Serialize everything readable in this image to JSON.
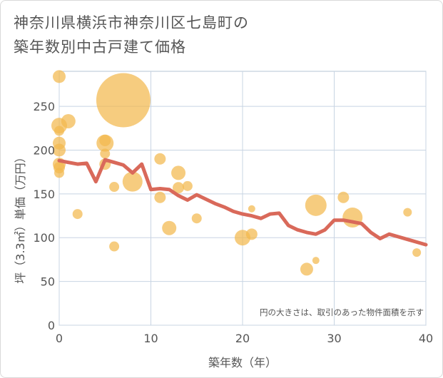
{
  "chart_data": {
    "type": "scatter",
    "title_line1": "神奈川県横浜市神奈川区七島町の",
    "title_line2": "築年数別中古戸建て価格",
    "xlabel": "築年数（年）",
    "ylabel": "坪（3.3㎡）単価（万円）",
    "xlim": [
      0,
      40
    ],
    "ylim": [
      0,
      290
    ],
    "xticks": [
      0,
      10,
      20,
      30,
      40
    ],
    "yticks": [
      0,
      50,
      100,
      150,
      200,
      250
    ],
    "grid": true,
    "bubble_note": "円の大きさは、取引のあった物件面積を示す",
    "colors": {
      "bubble": "#f3b84e",
      "line": "#d9695a",
      "grid": "#c8d4e3",
      "plot_border": "#b6c4d6"
    },
    "bubbles": [
      {
        "x": 0,
        "y": 284,
        "s": 9
      },
      {
        "x": 0,
        "y": 228,
        "s": 11
      },
      {
        "x": 0,
        "y": 222,
        "s": 7
      },
      {
        "x": 0,
        "y": 208,
        "s": 9
      },
      {
        "x": 0,
        "y": 200,
        "s": 9
      },
      {
        "x": 0,
        "y": 184,
        "s": 9
      },
      {
        "x": 0,
        "y": 180,
        "s": 8
      },
      {
        "x": 0,
        "y": 174,
        "s": 7
      },
      {
        "x": 1,
        "y": 233,
        "s": 10
      },
      {
        "x": 2,
        "y": 127,
        "s": 7
      },
      {
        "x": 5,
        "y": 208,
        "s": 12
      },
      {
        "x": 5,
        "y": 211,
        "s": 8
      },
      {
        "x": 5,
        "y": 196,
        "s": 7
      },
      {
        "x": 5,
        "y": 184,
        "s": 8
      },
      {
        "x": 6,
        "y": 158,
        "s": 7
      },
      {
        "x": 6,
        "y": 90,
        "s": 7
      },
      {
        "x": 7,
        "y": 257,
        "s": 38
      },
      {
        "x": 8,
        "y": 164,
        "s": 14
      },
      {
        "x": 11,
        "y": 190,
        "s": 8
      },
      {
        "x": 11,
        "y": 146,
        "s": 8
      },
      {
        "x": 12,
        "y": 111,
        "s": 10
      },
      {
        "x": 13,
        "y": 174,
        "s": 10
      },
      {
        "x": 13,
        "y": 157,
        "s": 8
      },
      {
        "x": 14,
        "y": 159,
        "s": 7
      },
      {
        "x": 15,
        "y": 122,
        "s": 7
      },
      {
        "x": 20,
        "y": 100,
        "s": 11
      },
      {
        "x": 21,
        "y": 104,
        "s": 8
      },
      {
        "x": 21,
        "y": 133,
        "s": 5
      },
      {
        "x": 27,
        "y": 64,
        "s": 9
      },
      {
        "x": 28,
        "y": 137,
        "s": 15
      },
      {
        "x": 28,
        "y": 74,
        "s": 5
      },
      {
        "x": 31,
        "y": 146,
        "s": 8
      },
      {
        "x": 32,
        "y": 123,
        "s": 14
      },
      {
        "x": 38,
        "y": 129,
        "s": 6
      },
      {
        "x": 39,
        "y": 83,
        "s": 6
      }
    ],
    "line": {
      "x": [
        0,
        1,
        2,
        3,
        4,
        5,
        6,
        7,
        8,
        9,
        10,
        11,
        12,
        13,
        14,
        15,
        16,
        17,
        18,
        19,
        20,
        21,
        22,
        23,
        24,
        25,
        26,
        27,
        28,
        29,
        30,
        31,
        32,
        33,
        34,
        35,
        36,
        37,
        38,
        39,
        40
      ],
      "y": [
        188,
        186,
        184,
        185,
        164,
        189,
        186,
        183,
        174,
        184,
        155,
        156,
        155,
        148,
        143,
        149,
        144,
        139,
        135,
        130,
        127,
        125,
        122,
        127,
        128,
        114,
        109,
        106,
        104,
        109,
        120,
        120,
        118,
        116,
        106,
        99,
        104,
        101,
        98,
        95,
        92
      ]
    }
  }
}
